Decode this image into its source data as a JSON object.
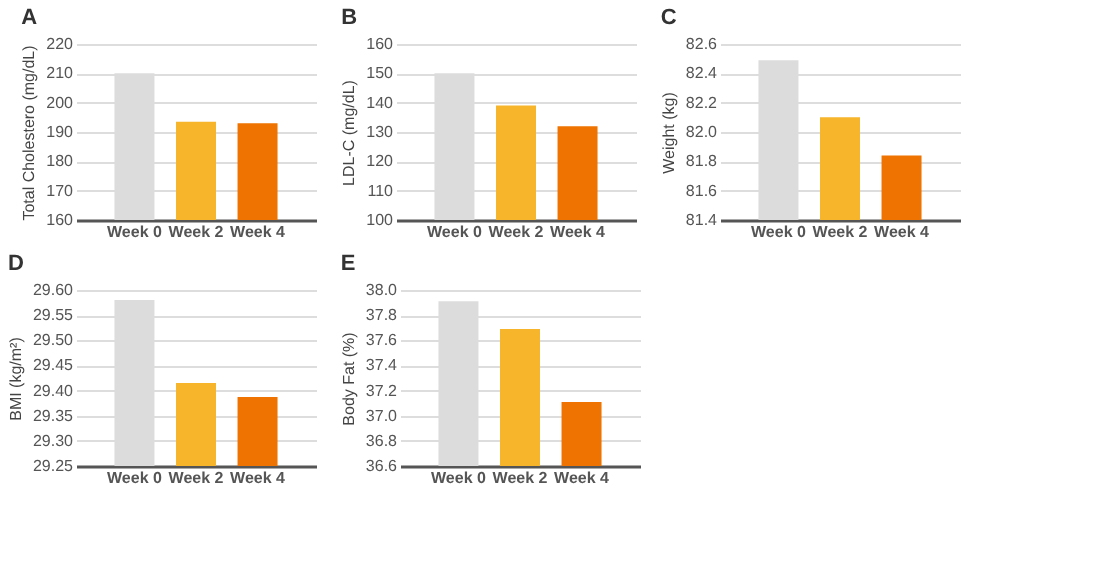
{
  "chart_data": [
    {
      "type": "bar",
      "title": "A",
      "ylabel": "Total Cholestero (mg/dL)",
      "categories": [
        "Week 0",
        "Week 2",
        "Week 4"
      ],
      "values": [
        210,
        193.5,
        193
      ],
      "colors": [
        "#dcdcdc",
        "#f7b52c",
        "#ef7300"
      ],
      "ylim": [
        160,
        220
      ],
      "yticks": [
        160,
        170,
        180,
        190,
        200,
        210,
        220
      ],
      "grid": "y"
    },
    {
      "type": "bar",
      "title": "B",
      "ylabel": "LDL-C (mg/dL)",
      "categories": [
        "Week 0",
        "Week 2",
        "Week 4"
      ],
      "values": [
        150,
        139,
        132
      ],
      "colors": [
        "#dcdcdc",
        "#f7b52c",
        "#ef7300"
      ],
      "ylim": [
        100,
        160
      ],
      "yticks": [
        100,
        110,
        120,
        130,
        140,
        150,
        160
      ],
      "grid": "y"
    },
    {
      "type": "bar",
      "title": "C",
      "ylabel": "Weight (kg)",
      "categories": [
        "Week 0",
        "Week 2",
        "Week 4"
      ],
      "values": [
        82.49,
        82.1,
        81.84
      ],
      "colors": [
        "#dcdcdc",
        "#f7b52c",
        "#ef7300"
      ],
      "ylim": [
        81.4,
        82.6
      ],
      "yticks": [
        81.4,
        81.6,
        81.8,
        {
          "value": 82.0,
          "label": "82.0"
        },
        82.2,
        82.4,
        82.6
      ],
      "grid": "y"
    },
    {
      "type": "bar",
      "title": "D",
      "ylabel": "BMI (kg/m²)",
      "categories": [
        "Week 0",
        "Week 2",
        "Week 4"
      ],
      "values": [
        29.58,
        29.415,
        29.387
      ],
      "colors": [
        "#dcdcdc",
        "#f7b52c",
        "#ef7300"
      ],
      "ylim": [
        29.25,
        29.6
      ],
      "yticks": [
        29.25,
        {
          "value": 29.3,
          "label": "29.30"
        },
        29.35,
        {
          "value": 29.4,
          "label": "29.40"
        },
        29.45,
        {
          "value": 29.5,
          "label": "29.50"
        },
        29.55,
        {
          "value": 29.6,
          "label": "29.60"
        }
      ],
      "grid": "y"
    },
    {
      "type": "bar",
      "title": "E",
      "ylabel": "Body Fat (%)",
      "categories": [
        "Week 0",
        "Week 2",
        "Week 4"
      ],
      "values": [
        37.91,
        37.69,
        37.11
      ],
      "colors": [
        "#dcdcdc",
        "#f7b52c",
        "#ef7300"
      ],
      "ylim": [
        36.6,
        38.0
      ],
      "yticks": [
        36.6,
        36.8,
        {
          "value": 37.0,
          "label": "37.0"
        },
        37.2,
        37.4,
        37.6,
        37.8,
        {
          "value": 38.0,
          "label": "38.0"
        }
      ],
      "grid": "y"
    }
  ]
}
